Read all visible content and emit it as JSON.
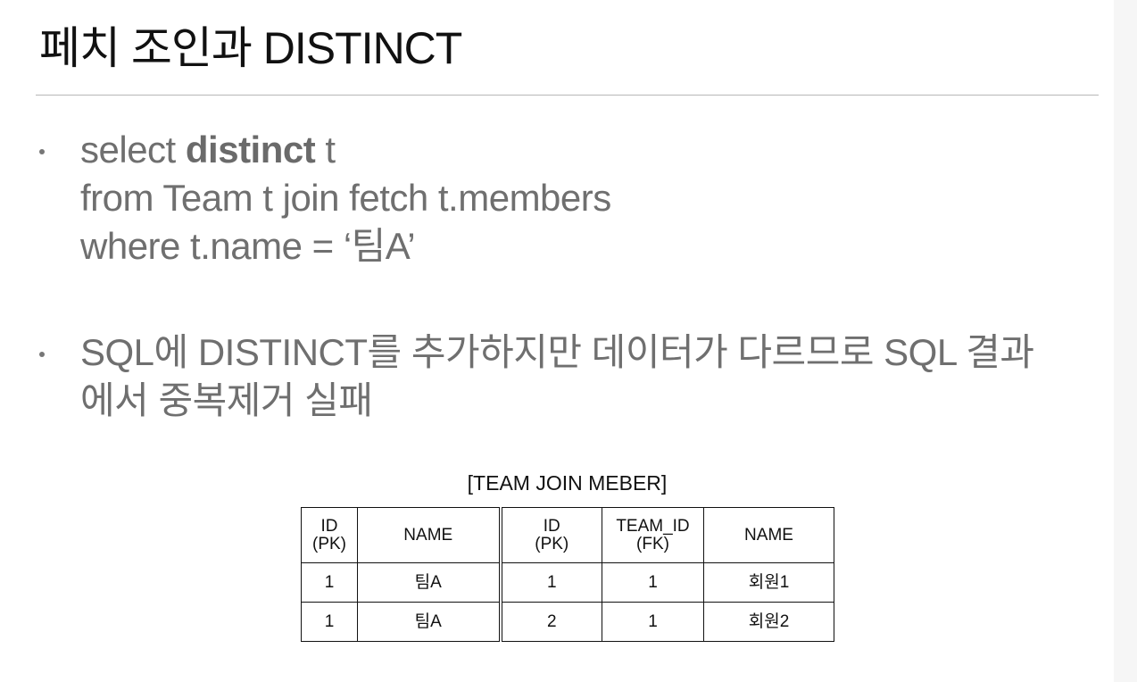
{
  "slide": {
    "title": "페치 조인과 DISTINCT"
  },
  "bullets": [
    {
      "line1_pre": "select ",
      "line1_kw": "distinct",
      "line1_post": " t",
      "line2": "from Team t join fetch t.members",
      "line3": "where t.name = ‘팀A’"
    },
    {
      "line1": "SQL에 DISTINCT를 추가하지만 데이터가 다르므로 SQL 결과",
      "line2": "에서 중복제거 실패"
    }
  ],
  "table": {
    "caption": "[TEAM JOIN MEBER]",
    "headers": [
      {
        "line1": "ID",
        "line2": "(PK)"
      },
      {
        "line1": "NAME",
        "line2": ""
      },
      {
        "line1": "ID",
        "line2": "(PK)"
      },
      {
        "line1": "TEAM_ID",
        "line2": "(FK)"
      },
      {
        "line1": "NAME",
        "line2": ""
      }
    ],
    "rows": [
      [
        "1",
        "팀A",
        "1",
        "1",
        "회원1"
      ],
      [
        "1",
        "팀A",
        "2",
        "1",
        "회원2"
      ]
    ]
  }
}
